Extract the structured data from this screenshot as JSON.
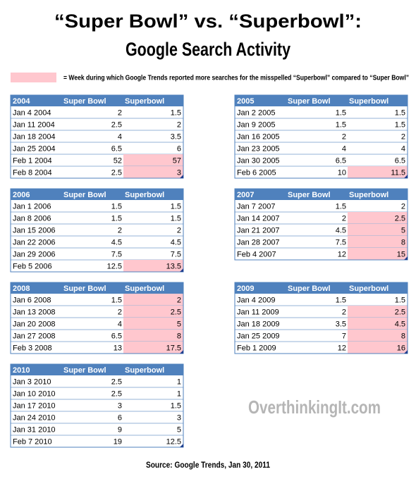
{
  "header": {
    "title_line1": "“Super Bowl” vs. “Superbowl”:",
    "title_line2": "Google Search Activity"
  },
  "legend": "= Week during which Google Trends reported more searches for the misspelled “Superbowl” compared to “Super Bowl”",
  "tables": [
    {
      "headers": [
        "2004",
        "Super Bowl",
        "Superbowl"
      ],
      "rows": [
        {
          "date": "Jan 4 2004",
          "values": [
            2,
            1.5
          ],
          "highlight": false
        },
        {
          "date": "Jan 11 2004",
          "values": [
            2.5,
            2
          ],
          "highlight": false
        },
        {
          "date": "Jan 18 2004",
          "values": [
            4,
            3.5
          ],
          "highlight": false
        },
        {
          "date": "Jan 25 2004",
          "values": [
            6.5,
            6
          ],
          "highlight": false
        },
        {
          "date": "Feb 1 2004",
          "values": [
            52,
            57
          ],
          "highlight": true
        },
        {
          "date": "Feb 8 2004",
          "values": [
            2.5,
            3
          ],
          "highlight": true
        }
      ]
    },
    {
      "headers": [
        "2005",
        "Super Bowl",
        "Superbowl"
      ],
      "rows": [
        {
          "date": "Jan 2 2005",
          "values": [
            1.5,
            1.5
          ],
          "highlight": false
        },
        {
          "date": "Jan 9 2005",
          "values": [
            1.5,
            1.5
          ],
          "highlight": false
        },
        {
          "date": "Jan 16 2005",
          "values": [
            2,
            2
          ],
          "highlight": false
        },
        {
          "date": "Jan 23 2005",
          "values": [
            4,
            4
          ],
          "highlight": false
        },
        {
          "date": "Jan 30 2005",
          "values": [
            6.5,
            6.5
          ],
          "highlight": false
        },
        {
          "date": "Feb 6 2005",
          "values": [
            10,
            11.5
          ],
          "highlight": true
        }
      ]
    },
    {
      "headers": [
        "2006",
        "Super Bowl",
        "Superbowl"
      ],
      "rows": [
        {
          "date": "Jan 1 2006",
          "values": [
            1.5,
            1.5
          ],
          "highlight": false
        },
        {
          "date": "Jan 8 2006",
          "values": [
            1.5,
            1.5
          ],
          "highlight": false
        },
        {
          "date": "Jan 15 2006",
          "values": [
            2,
            2
          ],
          "highlight": false
        },
        {
          "date": "Jan 22 2006",
          "values": [
            4.5,
            4.5
          ],
          "highlight": false
        },
        {
          "date": "Jan 29 2006",
          "values": [
            7.5,
            7.5
          ],
          "highlight": false
        },
        {
          "date": "Feb 5 2006",
          "values": [
            12.5,
            13.5
          ],
          "highlight": true
        }
      ]
    },
    {
      "headers": [
        "2007",
        "Super Bowl",
        "Superbowl"
      ],
      "rows": [
        {
          "date": "Jan 7 2007",
          "values": [
            1.5,
            2
          ],
          "highlight": false
        },
        {
          "date": "Jan 14 2007",
          "values": [
            2,
            2.5
          ],
          "highlight": true
        },
        {
          "date": "Jan 21 2007",
          "values": [
            4.5,
            5
          ],
          "highlight": true
        },
        {
          "date": "Jan 28 2007",
          "values": [
            7.5,
            8
          ],
          "highlight": true
        },
        {
          "date": "Feb 4 2007",
          "values": [
            12,
            15
          ],
          "highlight": true
        }
      ]
    },
    {
      "headers": [
        "2008",
        "Super Bowl",
        "Superbowl"
      ],
      "rows": [
        {
          "date": "Jan 6 2008",
          "values": [
            1.5,
            2
          ],
          "highlight": true
        },
        {
          "date": "Jan 13 2008",
          "values": [
            2,
            2.5
          ],
          "highlight": true
        },
        {
          "date": "Jan 20 2008",
          "values": [
            4,
            5
          ],
          "highlight": true
        },
        {
          "date": "Jan 27 2008",
          "values": [
            6.5,
            8
          ],
          "highlight": true
        },
        {
          "date": "Feb 3 2008",
          "values": [
            13,
            17.5
          ],
          "highlight": true
        }
      ]
    },
    {
      "headers": [
        "2009",
        "Super Bowl",
        "Superbowl"
      ],
      "rows": [
        {
          "date": "Jan 4 2009",
          "values": [
            1.5,
            1.5
          ],
          "highlight": false
        },
        {
          "date": "Jan 11 2009",
          "values": [
            2,
            2.5
          ],
          "highlight": true
        },
        {
          "date": "Jan 18 2009",
          "values": [
            3.5,
            4.5
          ],
          "highlight": true
        },
        {
          "date": "Jan 25 2009",
          "values": [
            7,
            8
          ],
          "highlight": true
        },
        {
          "date": "Feb 1 2009",
          "values": [
            12,
            16
          ],
          "highlight": true
        }
      ]
    },
    {
      "headers": [
        "2010",
        "Super Bowl",
        "Superbowl"
      ],
      "rows": [
        {
          "date": "Jan 3 2010",
          "values": [
            2.5,
            1
          ],
          "highlight": false
        },
        {
          "date": "Jan 10 2010",
          "values": [
            2.5,
            1
          ],
          "highlight": false
        },
        {
          "date": "Jan 17 2010",
          "values": [
            3,
            1.5
          ],
          "highlight": false
        },
        {
          "date": "Jan 24 2010",
          "values": [
            6,
            3
          ],
          "highlight": false
        },
        {
          "date": "Jan 31 2010",
          "values": [
            9,
            5
          ],
          "highlight": false
        },
        {
          "date": "Feb 7 2010",
          "values": [
            19,
            12.5
          ],
          "highlight": false
        }
      ]
    }
  ],
  "watermark": "OverthinkingIt.com",
  "source": "Source: Google Trends, Jan 30, 2011"
}
